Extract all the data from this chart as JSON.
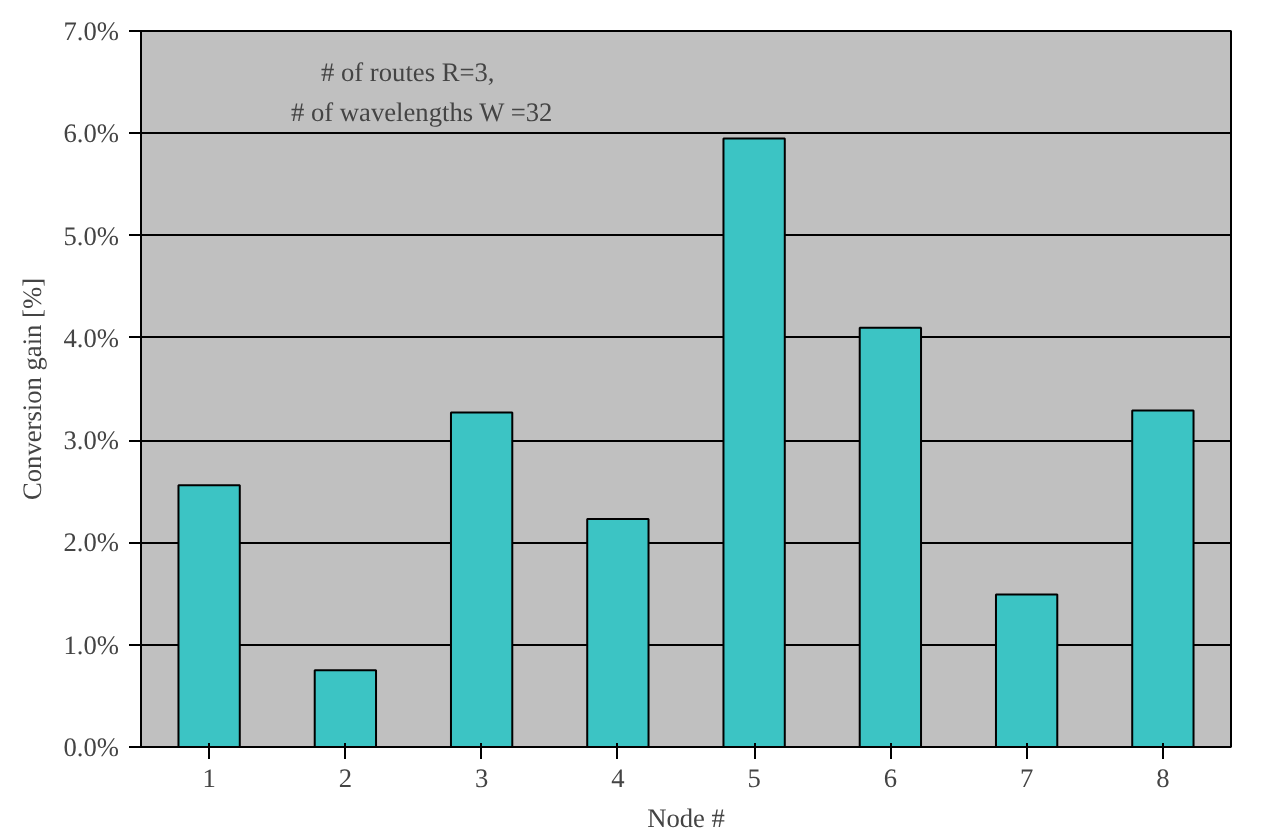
{
  "chart_data": {
    "type": "bar",
    "xlabel": "Node #",
    "ylabel": "Conversion gain [%]",
    "categories": [
      "1",
      "2",
      "3",
      "4",
      "5",
      "6",
      "7",
      "8"
    ],
    "values": [
      2.56,
      0.75,
      3.27,
      2.23,
      5.95,
      4.1,
      1.49,
      3.29
    ],
    "color": "#3cc4c4",
    "ylim": [
      0,
      7
    ],
    "yticks": [
      {
        "value": 0,
        "label": "0.0%"
      },
      {
        "value": 1,
        "label": "1.0%"
      },
      {
        "value": 2,
        "label": "2.0%"
      },
      {
        "value": 3,
        "label": "3.0%"
      },
      {
        "value": 4,
        "label": "4.0%"
      },
      {
        "value": 5,
        "label": "5.0%"
      },
      {
        "value": 6,
        "label": "6.0%"
      },
      {
        "value": 7,
        "label": "7.0%"
      }
    ],
    "grid": "y",
    "annotations": [
      "# of routes R=3,",
      "# of wavelengths W =32"
    ]
  }
}
